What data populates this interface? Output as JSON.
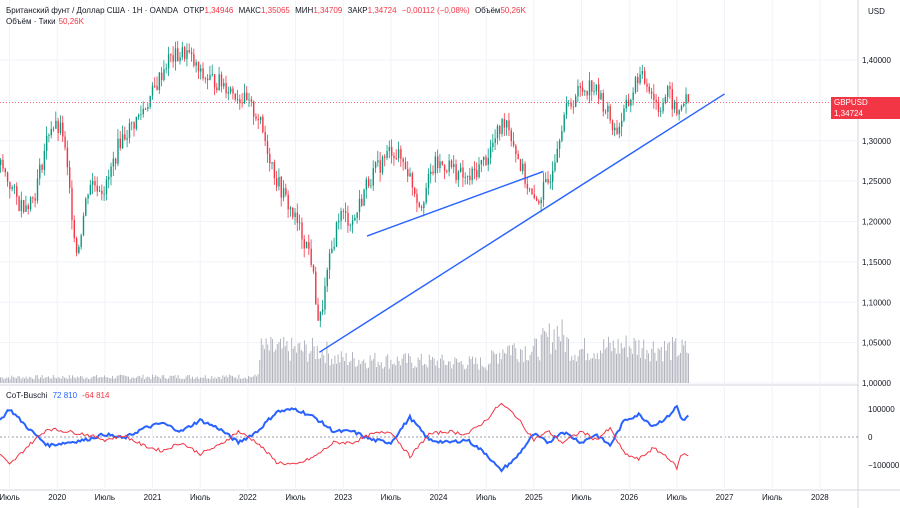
{
  "header": {
    "symbol_line": "Британский фунт / Доллар США · 1Н · OANDA",
    "open_label": "ОТКР",
    "open": "1,34946",
    "high_label": "МАКС",
    "high": "1,35065",
    "low_label": "МИН",
    "low": "1,34709",
    "close_label": "ЗАКР",
    "close": "1,34724",
    "change": "−0,00112 (−0,08%)",
    "volume_label": "Объём",
    "volume": "50,26K",
    "volume_line_label": "Объём · Тики",
    "volume_line_value": "50,26K"
  },
  "currency": "USD",
  "price_tag": {
    "symbol": "GBPUSD",
    "value": "1,34724",
    "color": "#f23645"
  },
  "indicator": {
    "name": "CoT-Buschi",
    "value1": "72 810",
    "value2": "-64 814",
    "color1": "#2962ff",
    "color2": "#f23645"
  },
  "colors": {
    "up": "#089981",
    "down": "#f23645",
    "volume": "#b2b5be",
    "trend": "#2962ff",
    "grid": "#f0f3fa"
  },
  "chart_data": [
    {
      "type": "candlestick",
      "title": "GBPUSD",
      "ylim": [
        1.0,
        1.45
      ],
      "yticks": [
        "1,40000",
        "1,35000",
        "1,30000",
        "1,25000",
        "1,20000",
        "1,15000",
        "1,10000",
        "1,05000",
        "1,00000"
      ],
      "ytick_values": [
        1.4,
        1.35,
        1.3,
        1.25,
        1.2,
        1.15,
        1.1,
        1.05,
        1.0
      ],
      "xticks": [
        "Июль",
        "2020",
        "Июль",
        "2021",
        "Июль",
        "2022",
        "Июль",
        "2023",
        "Июль",
        "2024",
        "Июль",
        "2025",
        "Июль",
        "2026",
        "Июль",
        "2027",
        "Июль",
        "2028"
      ],
      "xlim": [
        2019.4,
        2028.4
      ],
      "close_path": [
        [
          2019.4,
          1.27
        ],
        [
          2019.6,
          1.22
        ],
        [
          2019.75,
          1.23
        ],
        [
          2019.92,
          1.32
        ],
        [
          2020.05,
          1.31
        ],
        [
          2020.2,
          1.16
        ],
        [
          2020.33,
          1.25
        ],
        [
          2020.5,
          1.24
        ],
        [
          2020.65,
          1.3
        ],
        [
          2020.85,
          1.33
        ],
        [
          2021.0,
          1.36
        ],
        [
          2021.15,
          1.4
        ],
        [
          2021.35,
          1.41
        ],
        [
          2021.5,
          1.38
        ],
        [
          2021.75,
          1.37
        ],
        [
          2021.95,
          1.35
        ],
        [
          2022.1,
          1.33
        ],
        [
          2022.3,
          1.25
        ],
        [
          2022.5,
          1.2
        ],
        [
          2022.65,
          1.16
        ],
        [
          2022.74,
          1.07
        ],
        [
          2022.85,
          1.15
        ],
        [
          2022.95,
          1.21
        ],
        [
          2023.1,
          1.2
        ],
        [
          2023.25,
          1.25
        ],
        [
          2023.5,
          1.29
        ],
        [
          2023.65,
          1.27
        ],
        [
          2023.8,
          1.22
        ],
        [
          2023.95,
          1.27
        ],
        [
          2024.1,
          1.27
        ],
        [
          2024.3,
          1.25
        ],
        [
          2024.5,
          1.28
        ],
        [
          2024.7,
          1.33
        ],
        [
          2024.85,
          1.27
        ],
        [
          2025.0,
          1.22
        ],
        [
          2025.15,
          1.25
        ],
        [
          2025.3,
          1.33
        ],
        [
          2025.45,
          1.36
        ],
        [
          2025.6,
          1.37
        ],
        [
          2025.75,
          1.34
        ],
        [
          2025.85,
          1.31
        ],
        [
          2026.0,
          1.35
        ],
        [
          2026.08,
          1.38
        ],
        [
          2026.2,
          1.37
        ],
        [
          2026.3,
          1.34
        ],
        [
          2026.4,
          1.36
        ],
        [
          2026.5,
          1.33
        ],
        [
          2026.55,
          1.35
        ],
        [
          2026.62,
          1.347
        ]
      ],
      "trendlines": [
        [
          [
            2023.25,
            1.182
          ],
          [
            2025.1,
            1.262
          ]
        ],
        [
          [
            2022.75,
            1.038
          ],
          [
            2027.0,
            1.358
          ]
        ]
      ],
      "last_price": 1.34724
    },
    {
      "type": "bar",
      "title": "Объём · Тики",
      "profile": [
        [
          2019.4,
          0.07
        ],
        [
          2022.1,
          0.08
        ],
        [
          2022.12,
          0.42
        ],
        [
          2022.8,
          0.4
        ],
        [
          2022.9,
          0.3
        ],
        [
          2024.5,
          0.24
        ],
        [
          2024.7,
          0.45
        ],
        [
          2025.0,
          0.4
        ],
        [
          2025.25,
          0.65
        ],
        [
          2025.4,
          0.4
        ],
        [
          2026.0,
          0.46
        ],
        [
          2026.62,
          0.4
        ]
      ]
    },
    {
      "type": "line",
      "title": "CoT-Buschi",
      "ylim": [
        -150000,
        150000
      ],
      "yticks": [
        "100000",
        "0",
        "−100000"
      ],
      "ytick_values": [
        100000,
        0,
        -100000
      ],
      "series": [
        {
          "name": "72 810",
          "color": "#2962ff",
          "points": [
            [
              2019.4,
              60000
            ],
            [
              2019.5,
              100000
            ],
            [
              2019.7,
              30000
            ],
            [
              2019.9,
              -30000
            ],
            [
              2020.1,
              -20000
            ],
            [
              2020.3,
              -10000
            ],
            [
              2020.5,
              10000
            ],
            [
              2020.7,
              -5000
            ],
            [
              2020.9,
              30000
            ],
            [
              2021.1,
              50000
            ],
            [
              2021.3,
              20000
            ],
            [
              2021.5,
              60000
            ],
            [
              2021.7,
              30000
            ],
            [
              2021.9,
              -20000
            ],
            [
              2022.1,
              20000
            ],
            [
              2022.3,
              90000
            ],
            [
              2022.5,
              100000
            ],
            [
              2022.7,
              70000
            ],
            [
              2022.9,
              20000
            ],
            [
              2023.1,
              20000
            ],
            [
              2023.3,
              -10000
            ],
            [
              2023.5,
              -20000
            ],
            [
              2023.7,
              70000
            ],
            [
              2023.9,
              -10000
            ],
            [
              2024.1,
              -20000
            ],
            [
              2024.3,
              -10000
            ],
            [
              2024.5,
              -60000
            ],
            [
              2024.65,
              -120000
            ],
            [
              2024.8,
              -80000
            ],
            [
              2025.0,
              10000
            ],
            [
              2025.15,
              -20000
            ],
            [
              2025.3,
              20000
            ],
            [
              2025.5,
              -20000
            ],
            [
              2025.65,
              10000
            ],
            [
              2025.8,
              -30000
            ],
            [
              2025.95,
              60000
            ],
            [
              2026.1,
              80000
            ],
            [
              2026.25,
              40000
            ],
            [
              2026.4,
              70000
            ],
            [
              2026.5,
              110000
            ],
            [
              2026.55,
              60000
            ],
            [
              2026.62,
              72810
            ]
          ]
        },
        {
          "name": "-64 814",
          "color": "#f23645",
          "points": [
            [
              2019.4,
              -60000
            ],
            [
              2019.5,
              -100000
            ],
            [
              2019.7,
              -30000
            ],
            [
              2019.9,
              30000
            ],
            [
              2020.1,
              20000
            ],
            [
              2020.3,
              10000
            ],
            [
              2020.5,
              -10000
            ],
            [
              2020.7,
              5000
            ],
            [
              2020.9,
              -30000
            ],
            [
              2021.1,
              -50000
            ],
            [
              2021.3,
              -20000
            ],
            [
              2021.5,
              -60000
            ],
            [
              2021.7,
              -30000
            ],
            [
              2021.9,
              20000
            ],
            [
              2022.1,
              -20000
            ],
            [
              2022.3,
              -90000
            ],
            [
              2022.5,
              -100000
            ],
            [
              2022.7,
              -70000
            ],
            [
              2022.9,
              -20000
            ],
            [
              2023.1,
              -20000
            ],
            [
              2023.3,
              10000
            ],
            [
              2023.5,
              20000
            ],
            [
              2023.7,
              -70000
            ],
            [
              2023.9,
              10000
            ],
            [
              2024.1,
              20000
            ],
            [
              2024.3,
              10000
            ],
            [
              2024.5,
              60000
            ],
            [
              2024.65,
              120000
            ],
            [
              2024.8,
              80000
            ],
            [
              2025.0,
              -10000
            ],
            [
              2025.15,
              20000
            ],
            [
              2025.3,
              -20000
            ],
            [
              2025.5,
              20000
            ],
            [
              2025.65,
              -10000
            ],
            [
              2025.8,
              30000
            ],
            [
              2025.95,
              -60000
            ],
            [
              2026.1,
              -80000
            ],
            [
              2026.25,
              -40000
            ],
            [
              2026.4,
              -70000
            ],
            [
              2026.5,
              -110000
            ],
            [
              2026.55,
              -60000
            ],
            [
              2026.62,
              -64814
            ]
          ]
        }
      ]
    }
  ]
}
